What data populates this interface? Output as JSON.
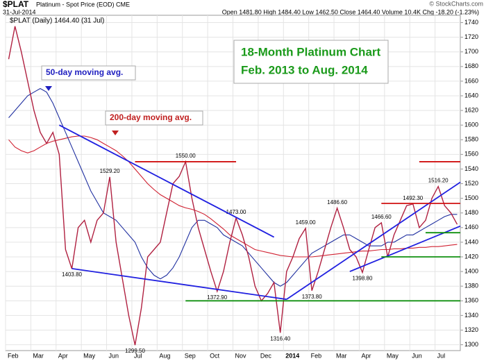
{
  "header": {
    "symbol": "$PLAT",
    "name": "Platinum - Spot Price (EOD) CME",
    "date": "31-Jul-2014",
    "quote": "Open 1481.80 High 1484.40 Low 1462.50 Close 1464.40 Volume 10.4K Chg -18.20 (-1.23%)",
    "credit": "© StockCharts.com"
  },
  "chart_data": {
    "type": "line",
    "legend_text": "$PLAT (Daily) 1464.40 (31 Jul)",
    "title": "18-Month Platinum Chart",
    "subtitle": "Feb. 2013 to Aug. 2014",
    "annotations": [
      "50-day moving avg.",
      "200-day moving avg."
    ],
    "categories": [
      "Feb",
      null,
      null,
      null,
      "Mar",
      null,
      null,
      null,
      "Apr",
      null,
      null,
      null,
      "May",
      null,
      null,
      null,
      "Jun",
      null,
      null,
      null,
      "Jul",
      null,
      null,
      null,
      "Aug",
      null,
      null,
      null,
      "Sep",
      null,
      null,
      null,
      "Oct",
      null,
      null,
      null,
      "Nov",
      null,
      null,
      null,
      "Dec",
      null,
      null,
      null,
      "2014",
      null,
      null,
      null,
      "Feb",
      null,
      null,
      null,
      "Mar",
      null,
      null,
      null,
      "Apr",
      null,
      null,
      null,
      "May",
      null,
      null,
      null,
      "Jun",
      null,
      null,
      null,
      "Jul",
      null,
      null,
      null
    ],
    "series": [
      {
        "name": "$PLAT",
        "color": "#b02040",
        "values": [
          1690,
          1735,
          1700,
          1660,
          1620,
          1590,
          1575,
          1590,
          1560,
          1430,
          1403.8,
          1460,
          1470,
          1440,
          1470,
          1480,
          1529.2,
          1440,
          1390,
          1340,
          1299.5,
          1350,
          1420,
          1430,
          1440,
          1480,
          1520,
          1530,
          1550,
          1500,
          1460,
          1430,
          1400,
          1372.9,
          1400,
          1440,
          1473,
          1450,
          1420,
          1380,
          1360,
          1370,
          1385,
          1316.4,
          1400,
          1420,
          1445,
          1459,
          1373.8,
          1400,
          1430,
          1460,
          1486.6,
          1460,
          1430,
          1420,
          1398.8,
          1430,
          1460,
          1466.6,
          1420,
          1450,
          1470,
          1490,
          1492.3,
          1460,
          1470,
          1500,
          1516.2,
          1490,
          1480,
          1464.4
        ],
        "value_labels": [
          null,
          null,
          null,
          null,
          null,
          null,
          null,
          null,
          null,
          null,
          "1403.80",
          null,
          null,
          null,
          null,
          null,
          "1529.20",
          null,
          null,
          null,
          "1299.50",
          null,
          null,
          null,
          null,
          null,
          null,
          null,
          "1550.00",
          null,
          null,
          null,
          null,
          "1372.90",
          null,
          null,
          "1473.00",
          null,
          null,
          null,
          null,
          null,
          null,
          "1316.40",
          null,
          null,
          null,
          "1459.00",
          "1373.80",
          null,
          null,
          null,
          "1486.60",
          null,
          null,
          null,
          "1398.80",
          null,
          null,
          "1466.60",
          null,
          null,
          null,
          null,
          "1492.30",
          null,
          null,
          null,
          "1516.20",
          null,
          null,
          null
        ]
      },
      {
        "name": "50-day",
        "color": "#2030a0",
        "values": [
          1610,
          1620,
          1630,
          1640,
          1645,
          1650,
          1645,
          1630,
          1610,
          1590,
          1570,
          1550,
          1530,
          1510,
          1495,
          1480,
          1475,
          1470,
          1460,
          1450,
          1440,
          1420,
          1405,
          1395,
          1390,
          1395,
          1405,
          1420,
          1440,
          1460,
          1470,
          1470,
          1465,
          1460,
          1450,
          1445,
          1440,
          1435,
          1425,
          1415,
          1405,
          1395,
          1385,
          1380,
          1385,
          1395,
          1405,
          1415,
          1425,
          1430,
          1435,
          1440,
          1445,
          1450,
          1450,
          1445,
          1440,
          1435,
          1435,
          1435,
          1440,
          1440,
          1445,
          1450,
          1450,
          1455,
          1460,
          1465,
          1470,
          1475,
          1478,
          1478
        ]
      },
      {
        "name": "200-day",
        "color": "#d02030",
        "values": [
          1580,
          1570,
          1565,
          1562,
          1565,
          1570,
          1575,
          1578,
          1580,
          1582,
          1584,
          1585,
          1585,
          1583,
          1580,
          1575,
          1570,
          1565,
          1558,
          1550,
          1540,
          1530,
          1520,
          1512,
          1505,
          1500,
          1495,
          1490,
          1487,
          1485,
          1482,
          1478,
          1472,
          1465,
          1458,
          1450,
          1445,
          1440,
          1435,
          1430,
          1428,
          1426,
          1424,
          1422,
          1421,
          1420,
          1420,
          1420,
          1420,
          1421,
          1422,
          1423,
          1424,
          1425,
          1426,
          1427,
          1428,
          1428,
          1429,
          1430,
          1430,
          1431,
          1431,
          1432,
          1432,
          1433,
          1433,
          1434,
          1434,
          1435,
          1436,
          1437
        ]
      }
    ],
    "trend_lines": [
      {
        "color": "#2020e0",
        "x": [
          8,
          42
        ],
        "y": [
          1600,
          1447
        ]
      },
      {
        "color": "#2020e0",
        "x": [
          10,
          44
        ],
        "y": [
          1404,
          1362
        ]
      },
      {
        "color": "#2020e0",
        "x": [
          44,
          71.5
        ],
        "y": [
          1362,
          1522
        ]
      },
      {
        "color": "#2020e0",
        "x": [
          54,
          71.5
        ],
        "y": [
          1400,
          1462
        ]
      },
      {
        "color": "#d01010",
        "x": [
          20,
          36
        ],
        "y": [
          1550,
          1550
        ]
      },
      {
        "color": "#d01010",
        "x": [
          65,
          71.5
        ],
        "y": [
          1550,
          1550
        ]
      },
      {
        "color": "#d01010",
        "x": [
          59,
          71.5
        ],
        "y": [
          1493,
          1493
        ]
      },
      {
        "color": "#109010",
        "x": [
          28,
          71.5
        ],
        "y": [
          1360,
          1360
        ]
      },
      {
        "color": "#109010",
        "x": [
          59,
          71.5
        ],
        "y": [
          1420,
          1420
        ]
      },
      {
        "color": "#109010",
        "x": [
          66,
          71.5
        ],
        "y": [
          1453,
          1453
        ]
      }
    ],
    "ylim": [
      1292,
      1750
    ],
    "yticks": [
      1300,
      1320,
      1340,
      1360,
      1380,
      1400,
      1420,
      1440,
      1460,
      1480,
      1500,
      1520,
      1540,
      1560,
      1580,
      1600,
      1620,
      1640,
      1660,
      1680,
      1700,
      1720,
      1740
    ],
    "grid": true
  }
}
